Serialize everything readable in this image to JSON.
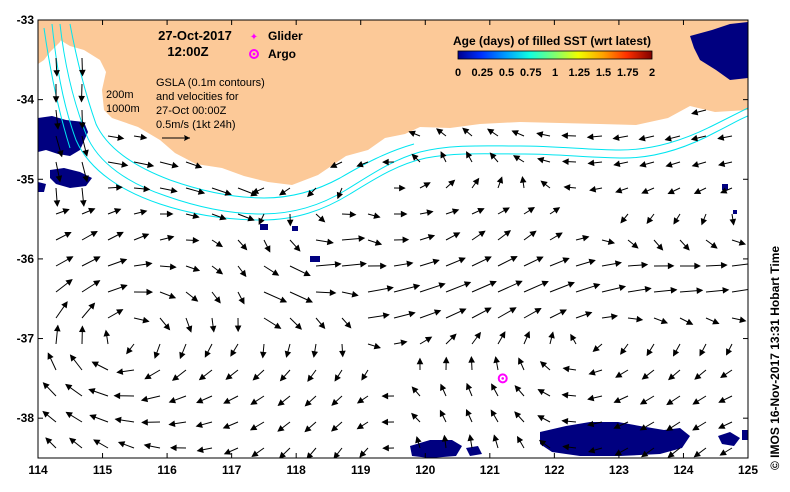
{
  "map": {
    "date_label": "27-Oct-2017",
    "time_label": "12:00Z",
    "legend_glider": "Glider",
    "legend_argo": "Argo",
    "gsla_line1": "GSLA (0.1m contours)",
    "gsla_line2": "and velocities for",
    "gsla_line3": "27-Oct 00:00Z",
    "scale_label": "0.5m/s (1kt 24h)",
    "contour_200": "200m",
    "contour_1000": "1000m",
    "credit": "©  IMOS 16-Nov-2017 13:31 Hobart Time"
  },
  "colorbar": {
    "title": "Age (days) of filled SST (wrt latest)",
    "ticks": [
      "0",
      "0.25",
      "0.5",
      "0.75",
      "1",
      "1.25",
      "1.5",
      "1.75",
      "2"
    ]
  },
  "axes": {
    "lon_range": [
      114,
      125
    ],
    "lat_range": [
      -38.5,
      -33
    ],
    "x_ticks": [
      114,
      115,
      116,
      117,
      118,
      119,
      120,
      121,
      122,
      123,
      124,
      125
    ],
    "x_tick_labels": [
      "114",
      "115",
      "116",
      "117",
      "118",
      "119",
      "120",
      "121",
      "122",
      "123",
      "124",
      "125"
    ],
    "y_ticks": [
      -33,
      -34,
      -35,
      -36,
      -37,
      -38
    ],
    "y_tick_labels": [
      "-33",
      "-34",
      "-35",
      "-36",
      "-37",
      "-38"
    ]
  },
  "argo_float": {
    "lon": 121.2,
    "lat": -37.5
  },
  "colors": {
    "land": "#fcc998",
    "sst_zero_age": "#000080",
    "contour": "#00e5f0",
    "argo": "#ff00ff",
    "arrow": "#000000"
  }
}
